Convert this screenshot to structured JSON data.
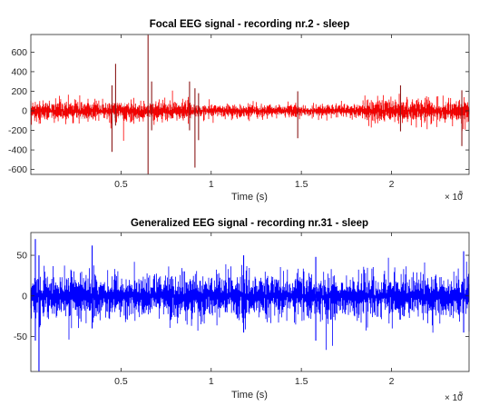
{
  "chart_data": [
    {
      "type": "line",
      "title": "Focal EEG signal - recording nr.2 - sleep",
      "xlabel": "Time (s)",
      "ylabel": "",
      "x_multiplier_label": "× 10",
      "x_multiplier_exponent": "5",
      "xlim": [
        0,
        243000
      ],
      "ylim": [
        -650,
        780
      ],
      "x_ticks": [
        50000,
        100000,
        150000,
        200000
      ],
      "x_tick_labels": [
        "0.5",
        "1",
        "1.5",
        "2"
      ],
      "y_ticks": [
        -600,
        -400,
        -200,
        0,
        200,
        400,
        600
      ],
      "y_tick_labels": [
        "-600",
        "-400",
        "-200",
        "0",
        "200",
        "400",
        "600"
      ],
      "grid": false,
      "series_color": "#ff0000",
      "series_secondary_color": "#8b1a1a",
      "noise": {
        "segments": [
          {
            "x_start": 0,
            "x_end": 90000,
            "amplitude": 120
          },
          {
            "x_start": 90000,
            "x_end": 185000,
            "amplitude": 75
          },
          {
            "x_start": 185000,
            "x_end": 243000,
            "amplitude": 135
          }
        ]
      },
      "spikes": [
        {
          "x": 45000,
          "y_max": 260,
          "y_min": -420
        },
        {
          "x": 47000,
          "y_max": 480,
          "y_min": -150
        },
        {
          "x": 65000,
          "y_max": 780,
          "y_min": -650
        },
        {
          "x": 67000,
          "y_max": 300,
          "y_min": -200
        },
        {
          "x": 88000,
          "y_max": 300,
          "y_min": -200
        },
        {
          "x": 91000,
          "y_max": 230,
          "y_min": -580
        },
        {
          "x": 93000,
          "y_max": 180,
          "y_min": -300
        },
        {
          "x": 148000,
          "y_max": 200,
          "y_min": -280
        },
        {
          "x": 205000,
          "y_max": 260,
          "y_min": -210
        },
        {
          "x": 239000,
          "y_max": 210,
          "y_min": -360
        }
      ]
    },
    {
      "type": "line",
      "title": "Generalized EEG signal - recording nr.31 - sleep",
      "xlabel": "Time (s)",
      "ylabel": "",
      "x_multiplier_label": "× 10",
      "x_multiplier_exponent": "5",
      "xlim": [
        0,
        243000
      ],
      "ylim": [
        -93,
        78
      ],
      "x_ticks": [
        50000,
        100000,
        150000,
        200000
      ],
      "x_tick_labels": [
        "0.5",
        "1",
        "1.5",
        "2"
      ],
      "y_ticks": [
        -50,
        0,
        50
      ],
      "y_tick_labels": [
        "-50",
        "0",
        "50"
      ],
      "grid": false,
      "series_color": "#0000ff",
      "noise": {
        "segments": [
          {
            "x_start": 0,
            "x_end": 243000,
            "amplitude": 30
          }
        ]
      },
      "spikes": [
        {
          "x": 2500,
          "y_max": 70,
          "y_min": -55
        },
        {
          "x": 4500,
          "y_max": 50,
          "y_min": -93
        },
        {
          "x": 34000,
          "y_max": 62,
          "y_min": -40
        },
        {
          "x": 118000,
          "y_max": 50,
          "y_min": -45
        },
        {
          "x": 158000,
          "y_max": 48,
          "y_min": -55
        },
        {
          "x": 240000,
          "y_max": 55,
          "y_min": -45
        }
      ]
    }
  ]
}
